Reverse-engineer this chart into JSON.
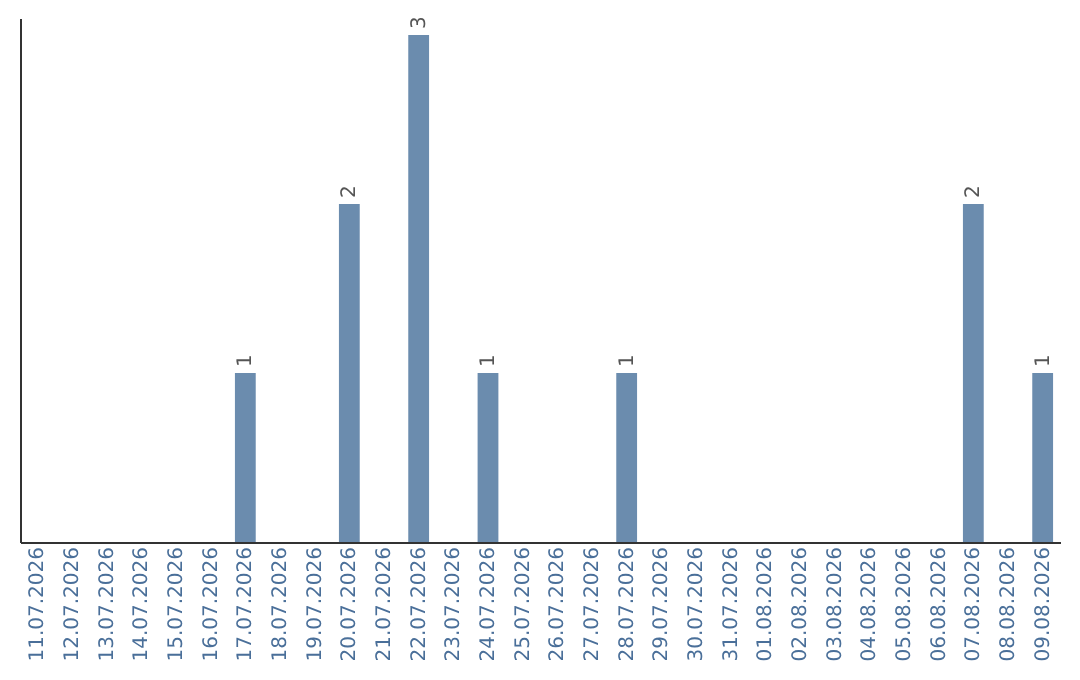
{
  "chart_data": {
    "type": "bar",
    "categories": [
      "11.07.2026",
      "12.07.2026",
      "13.07.2026",
      "14.07.2026",
      "15.07.2026",
      "16.07.2026",
      "17.07.2026",
      "18.07.2026",
      "19.07.2026",
      "20.07.2026",
      "21.07.2026",
      "22.07.2026",
      "23.07.2026",
      "24.07.2026",
      "25.07.2026",
      "26.07.2026",
      "27.07.2026",
      "28.07.2026",
      "29.07.2026",
      "30.07.2026",
      "31.07.2026",
      "01.08.2026",
      "02.08.2026",
      "03.08.2026",
      "04.08.2026",
      "05.08.2026",
      "06.08.2026",
      "07.08.2026",
      "08.08.2026",
      "09.08.2026"
    ],
    "values": [
      0,
      0,
      0,
      0,
      0,
      0,
      1,
      0,
      0,
      2,
      0,
      3,
      0,
      1,
      0,
      0,
      0,
      1,
      0,
      0,
      0,
      0,
      0,
      0,
      0,
      0,
      0,
      2,
      0,
      1
    ],
    "value_labels": [
      null,
      null,
      null,
      null,
      null,
      null,
      "1",
      null,
      null,
      "2",
      null,
      "3",
      null,
      "1",
      null,
      null,
      null,
      "1",
      null,
      null,
      null,
      null,
      null,
      null,
      null,
      null,
      null,
      "2",
      null,
      "1"
    ],
    "color": "#6b8cae",
    "ylim": [
      0,
      3.1
    ],
    "tick_labels": "x",
    "grid": false
  }
}
